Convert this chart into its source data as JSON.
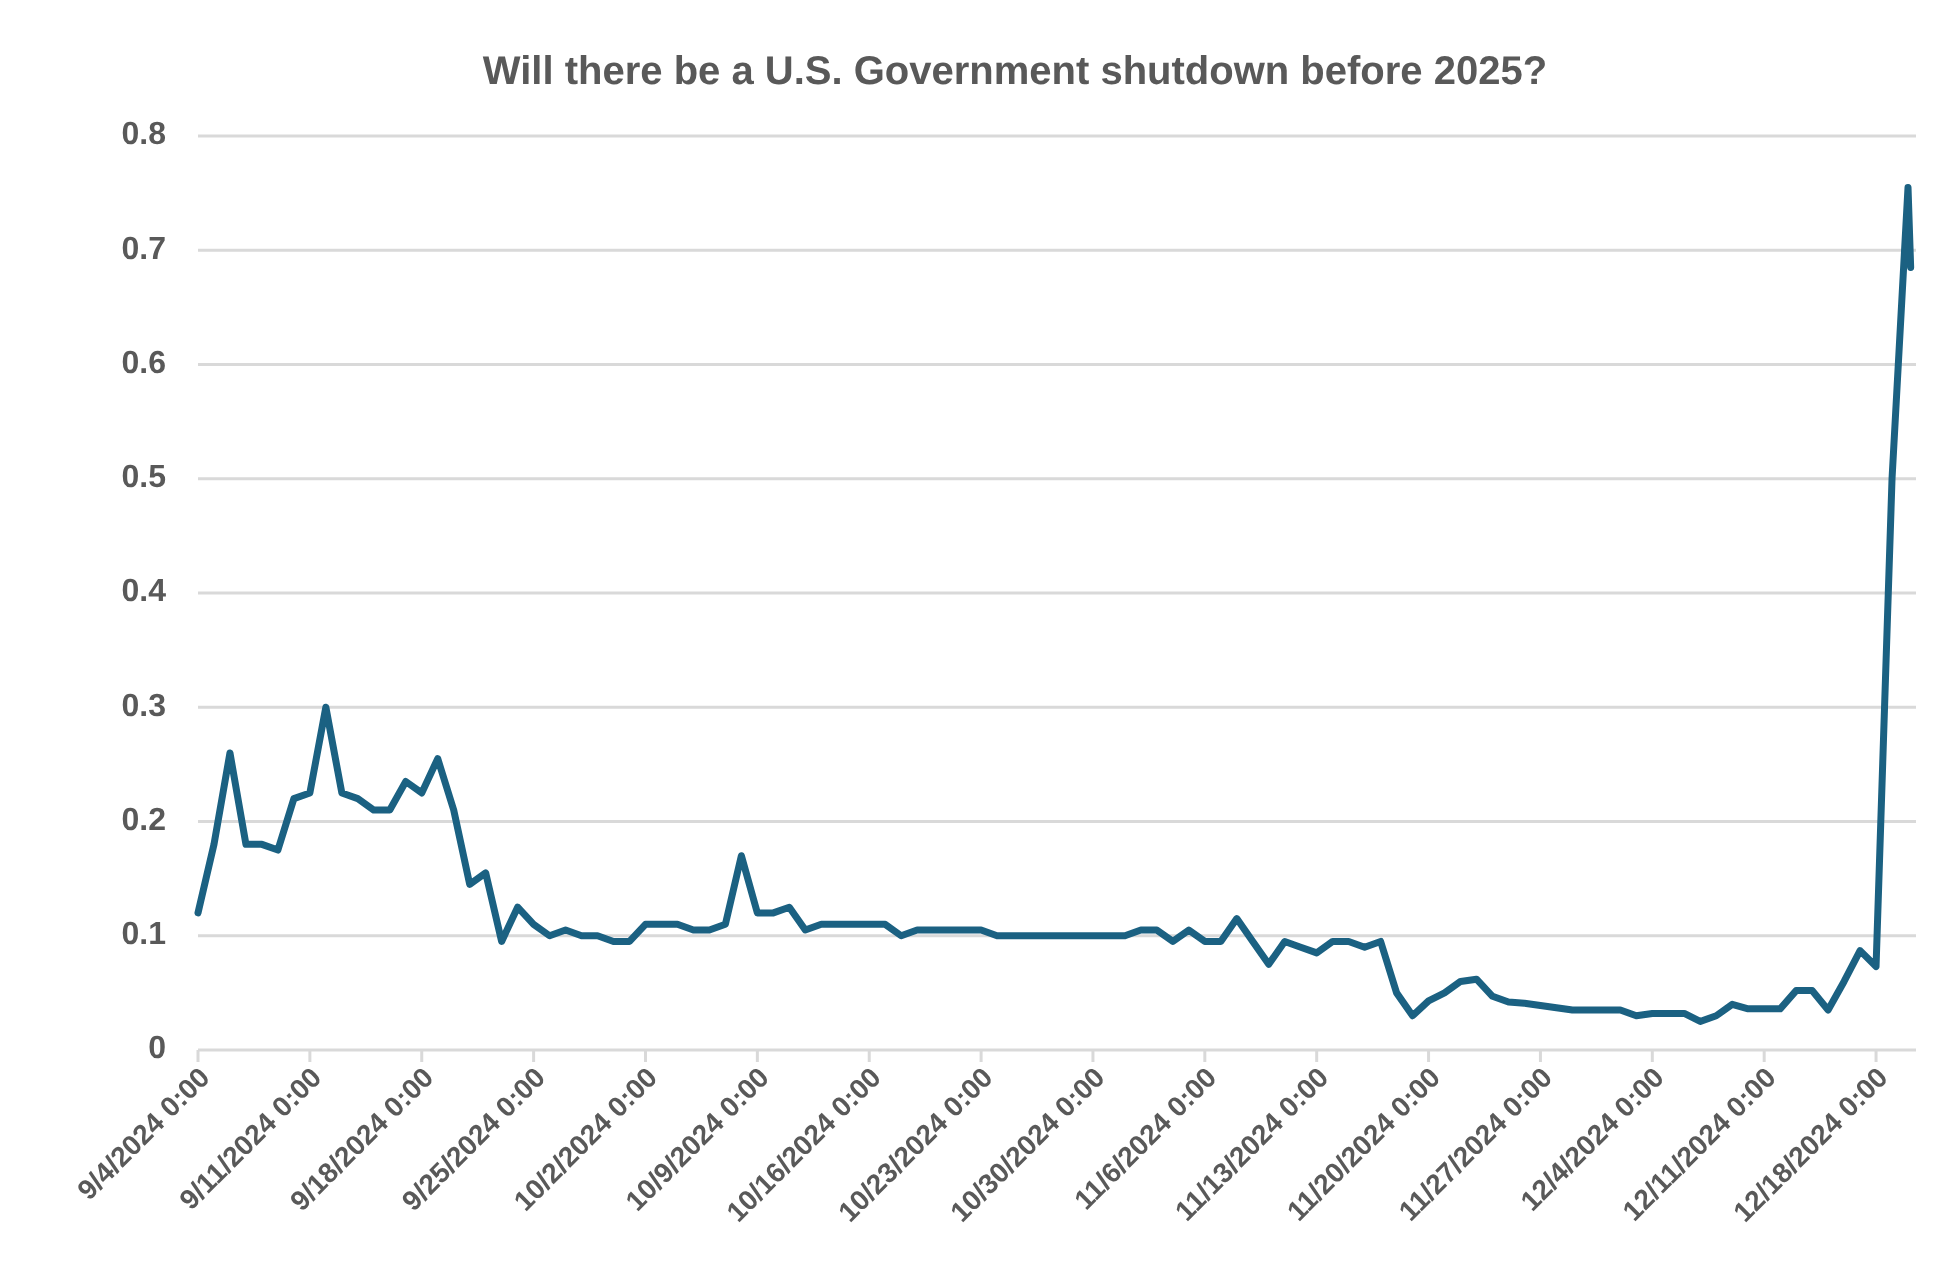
{
  "chart_data": {
    "type": "line",
    "title": "Will there be a U.S. Government shutdown before 2025?",
    "x": [
      "2024-09-04",
      "2024-09-05",
      "2024-09-06",
      "2024-09-07",
      "2024-09-08",
      "2024-09-09",
      "2024-09-10",
      "2024-09-11",
      "2024-09-12",
      "2024-09-13",
      "2024-09-14",
      "2024-09-15",
      "2024-09-16",
      "2024-09-17",
      "2024-09-18",
      "2024-09-19",
      "2024-09-20",
      "2024-09-21",
      "2024-09-22",
      "2024-09-23",
      "2024-09-24",
      "2024-09-25",
      "2024-09-26",
      "2024-09-27",
      "2024-09-28",
      "2024-09-29",
      "2024-09-30",
      "2024-10-01",
      "2024-10-02",
      "2024-10-03",
      "2024-10-04",
      "2024-10-05",
      "2024-10-06",
      "2024-10-07",
      "2024-10-08",
      "2024-10-09",
      "2024-10-10",
      "2024-10-11",
      "2024-10-12",
      "2024-10-13",
      "2024-10-14",
      "2024-10-15",
      "2024-10-16",
      "2024-10-17",
      "2024-10-18",
      "2024-10-19",
      "2024-10-20",
      "2024-10-21",
      "2024-10-22",
      "2024-10-23",
      "2024-10-24",
      "2024-10-25",
      "2024-10-26",
      "2024-10-27",
      "2024-10-28",
      "2024-10-29",
      "2024-10-30",
      "2024-10-31",
      "2024-11-01",
      "2024-11-02",
      "2024-11-03",
      "2024-11-04",
      "2024-11-05",
      "2024-11-06",
      "2024-11-07",
      "2024-11-08",
      "2024-11-09",
      "2024-11-10",
      "2024-11-11",
      "2024-11-12",
      "2024-11-13",
      "2024-11-14",
      "2024-11-15",
      "2024-11-16",
      "2024-11-17",
      "2024-11-18",
      "2024-11-19",
      "2024-11-20",
      "2024-11-21",
      "2024-11-22",
      "2024-11-23",
      "2024-11-24",
      "2024-11-25",
      "2024-11-26",
      "2024-11-27",
      "2024-11-28",
      "2024-11-29",
      "2024-11-30",
      "2024-12-01",
      "2024-12-02",
      "2024-12-03",
      "2024-12-04",
      "2024-12-05",
      "2024-12-06",
      "2024-12-07",
      "2024-12-08",
      "2024-12-09",
      "2024-12-10",
      "2024-12-11",
      "2024-12-12",
      "2024-12-13",
      "2024-12-14",
      "2024-12-15",
      "2024-12-16",
      "2024-12-17",
      "2024-12-18",
      "2024-12-19",
      "2024-12-20T00:00",
      "2024-12-20T04:00"
    ],
    "series": [
      {
        "color": "#1b6182",
        "values": [
          0.12,
          0.18,
          0.26,
          0.18,
          0.18,
          0.175,
          0.22,
          0.225,
          0.3,
          0.225,
          0.22,
          0.21,
          0.21,
          0.235,
          0.225,
          0.255,
          0.21,
          0.145,
          0.155,
          0.095,
          0.125,
          0.11,
          0.1,
          0.105,
          0.1,
          0.1,
          0.095,
          0.095,
          0.11,
          0.11,
          0.11,
          0.105,
          0.105,
          0.11,
          0.17,
          0.12,
          0.12,
          0.125,
          0.105,
          0.11,
          0.11,
          0.11,
          0.11,
          0.11,
          0.1,
          0.105,
          0.105,
          0.105,
          0.105,
          0.105,
          0.1,
          0.1,
          0.1,
          0.1,
          0.1,
          0.1,
          0.1,
          0.1,
          0.1,
          0.105,
          0.105,
          0.095,
          0.105,
          0.095,
          0.095,
          0.115,
          0.095,
          0.075,
          0.095,
          0.09,
          0.085,
          0.095,
          0.095,
          0.09,
          0.095,
          0.05,
          0.03,
          0.043,
          0.05,
          0.06,
          0.062,
          0.047,
          0.042,
          0.041,
          0.039,
          0.037,
          0.035,
          0.035,
          0.035,
          0.035,
          0.03,
          0.032,
          0.032,
          0.032,
          0.025,
          0.03,
          0.04,
          0.036,
          0.036,
          0.036,
          0.052,
          0.052,
          0.035,
          0.06,
          0.087,
          0.073,
          0.5,
          0.755,
          0.685
        ]
      }
    ],
    "xlim": [
      "2024-09-04",
      "2024-12-20T12:00"
    ],
    "xticks": [
      {
        "value": "2024-09-04",
        "label": "9/4/2024 0:00"
      },
      {
        "value": "2024-09-11",
        "label": "9/11/2024 0:00"
      },
      {
        "value": "2024-09-18",
        "label": "9/18/2024 0:00"
      },
      {
        "value": "2024-09-25",
        "label": "9/25/2024 0:00"
      },
      {
        "value": "2024-10-02",
        "label": "10/2/2024 0:00"
      },
      {
        "value": "2024-10-09",
        "label": "10/9/2024 0:00"
      },
      {
        "value": "2024-10-16",
        "label": "10/16/2024 0:00"
      },
      {
        "value": "2024-10-23",
        "label": "10/23/2024 0:00"
      },
      {
        "value": "2024-10-30",
        "label": "10/30/2024 0:00"
      },
      {
        "value": "2024-11-06",
        "label": "11/6/2024 0:00"
      },
      {
        "value": "2024-11-13",
        "label": "11/13/2024 0:00"
      },
      {
        "value": "2024-11-20",
        "label": "11/20/2024 0:00"
      },
      {
        "value": "2024-11-27",
        "label": "11/27/2024 0:00"
      },
      {
        "value": "2024-12-04",
        "label": "12/4/2024 0:00"
      },
      {
        "value": "2024-12-11",
        "label": "12/11/2024 0:00"
      },
      {
        "value": "2024-12-18",
        "label": "12/18/2024 0:00"
      }
    ],
    "ylim": [
      0,
      0.8
    ],
    "yticks": [
      0,
      0.1,
      0.2,
      0.3,
      0.4,
      0.5,
      0.6,
      0.7,
      0.8
    ],
    "grid": "y",
    "marker": "none",
    "line_style": "solid"
  }
}
